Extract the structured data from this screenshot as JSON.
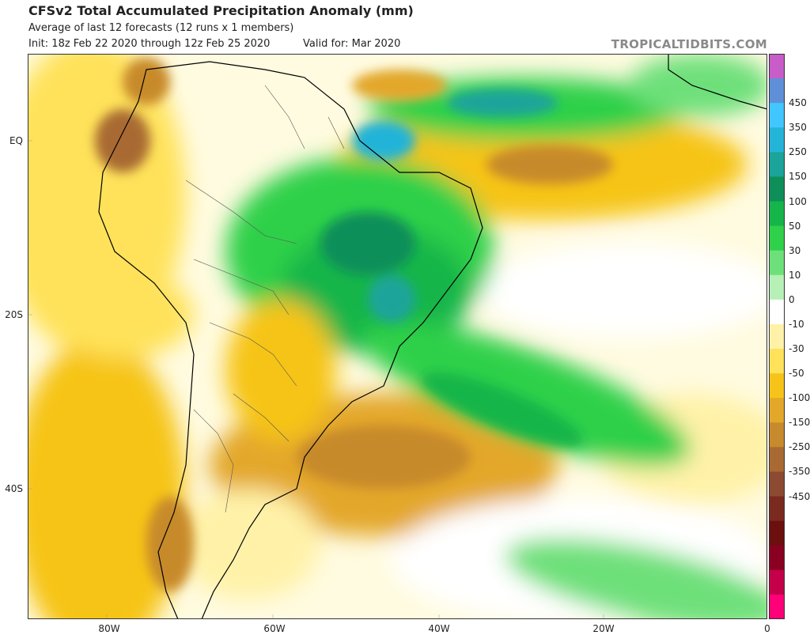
{
  "header": {
    "title": "CFSv2 Total Accumulated Precipitation Anomaly (mm)",
    "subtitle": "Average of last 12 forecasts (12 runs x 1 members)",
    "init": "Init: 18z Feb 22 2020 through 12z Feb 25 2020",
    "valid": "Valid for: Mar 2020",
    "brand": "TROPICALTIDBITS.COM"
  },
  "map": {
    "lat_labels": [
      "EQ",
      "20S",
      "40S"
    ],
    "lon_labels": [
      "80W",
      "60W",
      "40W",
      "20W",
      "0"
    ]
  },
  "colorbar": {
    "labels": [
      "450",
      "350",
      "250",
      "150",
      "100",
      "50",
      "30",
      "10",
      "0",
      "-10",
      "-30",
      "-50",
      "-100",
      "-150",
      "-250",
      "-350",
      "-450"
    ],
    "colors": [
      "#c85cc8",
      "#5f8fd8",
      "#42c6ff",
      "#24b4d8",
      "#1aa49a",
      "#0e8f5a",
      "#16b54a",
      "#2fd04a",
      "#6ee07a",
      "#b6f0b6",
      "#ffffff",
      "#fff2a8",
      "#ffe25a",
      "#f6c418",
      "#e3a72a",
      "#c78a2c",
      "#a86a32",
      "#8c4a32",
      "#7a2a1e",
      "#6c0f0f",
      "#8a0020",
      "#c4004a",
      "#ff0078"
    ]
  },
  "colors": {
    "background": "#ffffff",
    "brand_text": "#8a8a8a",
    "land_outline": "#000000",
    "wet": "#16b54a",
    "dry": "#e3a72a"
  }
}
